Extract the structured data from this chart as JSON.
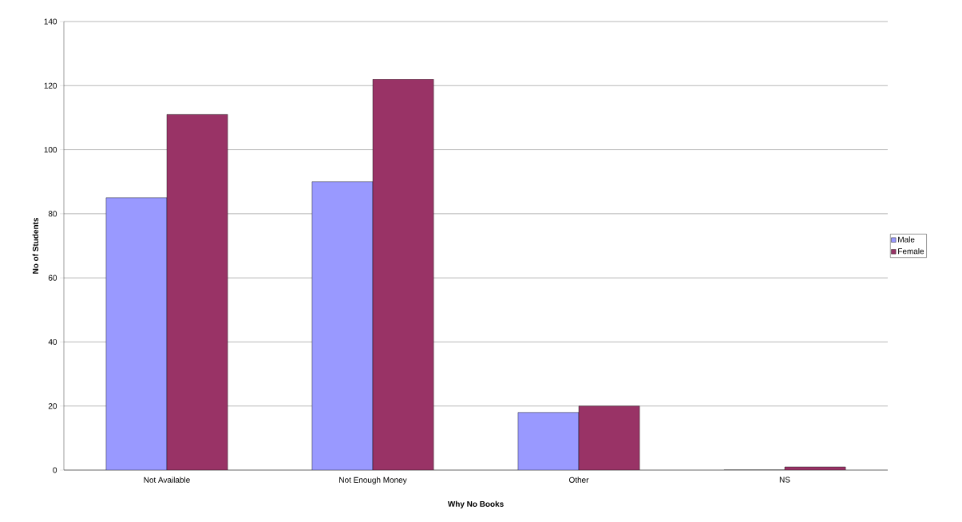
{
  "chart_data": {
    "type": "bar",
    "xlabel": "Why No Books",
    "ylabel": "No of Students",
    "categories": [
      "Not Available",
      "Not Enough Money",
      "Other",
      "NS"
    ],
    "series": [
      {
        "name": "Male",
        "color": "#9999ff",
        "values": [
          85,
          90,
          18,
          0
        ]
      },
      {
        "name": "Female",
        "color": "#993366",
        "values": [
          111,
          122,
          20,
          1
        ]
      }
    ],
    "ylim": [
      0,
      140
    ],
    "yticks": [
      0,
      20,
      40,
      60,
      80,
      100,
      120,
      140
    ],
    "grid": "y",
    "legend": "right"
  }
}
